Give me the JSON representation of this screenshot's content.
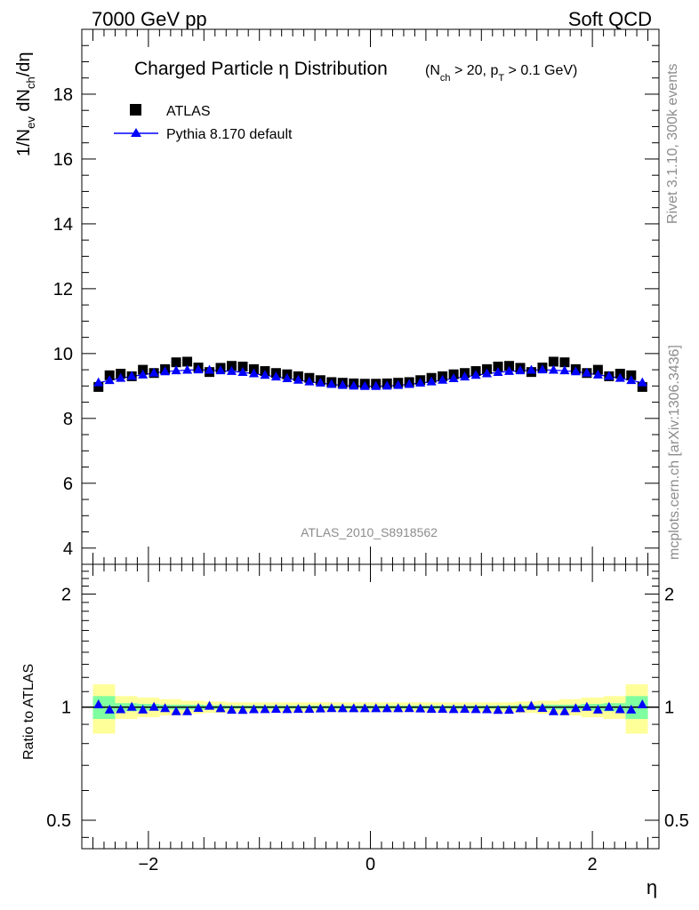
{
  "header": {
    "left": "7000 GeV pp",
    "right": "Soft QCD"
  },
  "side_text": {
    "top": "Rivet 3.1.10,  300k events",
    "bottom": "mcplots.cern.ch [arXiv:1306.3436]"
  },
  "chart_data": [
    {
      "panel": "main",
      "type": "scatter",
      "title_main": "Charged Particle η Distribution",
      "title_sub": "(N_ch > 20, p_T > 0.1 GeV)",
      "ylabel": "1/N_ev dN_ch/dη",
      "xlabel": "η",
      "xlim": [
        -2.6,
        2.6
      ],
      "ylim": [
        3.5,
        20.0
      ],
      "yticks": [
        4,
        6,
        8,
        10,
        12,
        14,
        16,
        18
      ],
      "grid": false,
      "legend_placement": "top-left",
      "watermark": "ATLAS_2010_S8918562",
      "x": [
        -2.45,
        -2.35,
        -2.25,
        -2.15,
        -2.05,
        -1.95,
        -1.85,
        -1.75,
        -1.65,
        -1.55,
        -1.45,
        -1.35,
        -1.25,
        -1.15,
        -1.05,
        -0.95,
        -0.85,
        -0.75,
        -0.65,
        -0.55,
        -0.45,
        -0.35,
        -0.25,
        -0.15,
        -0.05,
        0.05,
        0.15,
        0.25,
        0.35,
        0.45,
        0.55,
        0.65,
        0.75,
        0.85,
        0.95,
        1.05,
        1.15,
        1.25,
        1.35,
        1.45,
        1.55,
        1.65,
        1.75,
        1.85,
        1.95,
        2.05,
        2.15,
        2.25,
        2.35,
        2.45
      ],
      "series": [
        {
          "name": "ATLAS",
          "marker": "square",
          "color": "#000000",
          "values": [
            8.97,
            9.33,
            9.38,
            9.3,
            9.5,
            9.4,
            9.52,
            9.73,
            9.75,
            9.57,
            9.43,
            9.56,
            9.62,
            9.6,
            9.52,
            9.46,
            9.4,
            9.36,
            9.3,
            9.25,
            9.18,
            9.12,
            9.1,
            9.08,
            9.07,
            9.07,
            9.08,
            9.1,
            9.12,
            9.18,
            9.25,
            9.3,
            9.36,
            9.4,
            9.46,
            9.52,
            9.6,
            9.62,
            9.56,
            9.43,
            9.57,
            9.75,
            9.73,
            9.52,
            9.4,
            9.5,
            9.3,
            9.38,
            9.33,
            8.97
          ]
        },
        {
          "name": "Pythia 8.170 default",
          "marker": "triangle",
          "color": "#0000ff",
          "values": [
            9.1,
            9.17,
            9.24,
            9.3,
            9.34,
            9.4,
            9.44,
            9.47,
            9.49,
            9.5,
            9.49,
            9.47,
            9.45,
            9.42,
            9.38,
            9.33,
            9.28,
            9.23,
            9.18,
            9.13,
            9.09,
            9.05,
            9.02,
            9.0,
            8.99,
            8.99,
            9.0,
            9.02,
            9.05,
            9.09,
            9.13,
            9.18,
            9.23,
            9.28,
            9.33,
            9.38,
            9.42,
            9.45,
            9.47,
            9.49,
            9.5,
            9.49,
            9.47,
            9.44,
            9.4,
            9.34,
            9.3,
            9.24,
            9.17,
            9.1
          ]
        }
      ]
    },
    {
      "panel": "ratio",
      "type": "scatter",
      "ylabel": "Ratio to ATLAS",
      "xlabel": "η",
      "xlim": [
        -2.6,
        2.6
      ],
      "ylim": [
        0.42,
        2.4
      ],
      "yscale": "log",
      "yticks": [
        0.5,
        1,
        2
      ],
      "xticks": [
        -2,
        0,
        2
      ],
      "band_colors": {
        "stat": "#7fff9f",
        "total": "#ffff99"
      },
      "bands": {
        "x_edges": [
          -2.5,
          -2.3,
          -2.1,
          -1.9,
          -1.7,
          -1.5,
          -1.3,
          -1.1,
          -0.9,
          -0.7,
          -0.5,
          -0.3,
          -0.1,
          0.1,
          0.3,
          0.5,
          0.7,
          0.9,
          1.1,
          1.3,
          1.5,
          1.7,
          1.9,
          2.1,
          2.3,
          2.5
        ],
        "total_half_width": [
          0.15,
          0.07,
          0.06,
          0.05,
          0.04,
          0.035,
          0.03,
          0.03,
          0.03,
          0.03,
          0.03,
          0.03,
          0.03,
          0.03,
          0.03,
          0.03,
          0.03,
          0.03,
          0.03,
          0.035,
          0.04,
          0.05,
          0.06,
          0.07,
          0.15
        ],
        "stat_half_width": [
          0.07,
          0.025,
          0.02,
          0.015,
          0.015,
          0.012,
          0.01,
          0.01,
          0.01,
          0.01,
          0.01,
          0.01,
          0.01,
          0.01,
          0.01,
          0.01,
          0.01,
          0.01,
          0.01,
          0.012,
          0.015,
          0.015,
          0.02,
          0.025,
          0.07
        ]
      },
      "reference_line": 1.0,
      "series": [
        {
          "name": "Pythia 8.170 default",
          "marker": "triangle",
          "color": "#0000ff",
          "values": [
            1.015,
            0.983,
            0.985,
            1.0,
            0.983,
            1.0,
            0.992,
            0.973,
            0.973,
            0.993,
            1.006,
            0.991,
            0.982,
            0.981,
            0.985,
            0.986,
            0.987,
            0.986,
            0.987,
            0.987,
            0.99,
            0.992,
            0.991,
            0.991,
            0.991,
            0.991,
            0.991,
            0.991,
            0.992,
            0.99,
            0.987,
            0.987,
            0.986,
            0.987,
            0.986,
            0.985,
            0.981,
            0.982,
            0.991,
            1.006,
            0.993,
            0.973,
            0.973,
            0.992,
            1.0,
            0.983,
            1.0,
            0.985,
            0.983,
            1.015
          ]
        }
      ]
    }
  ]
}
